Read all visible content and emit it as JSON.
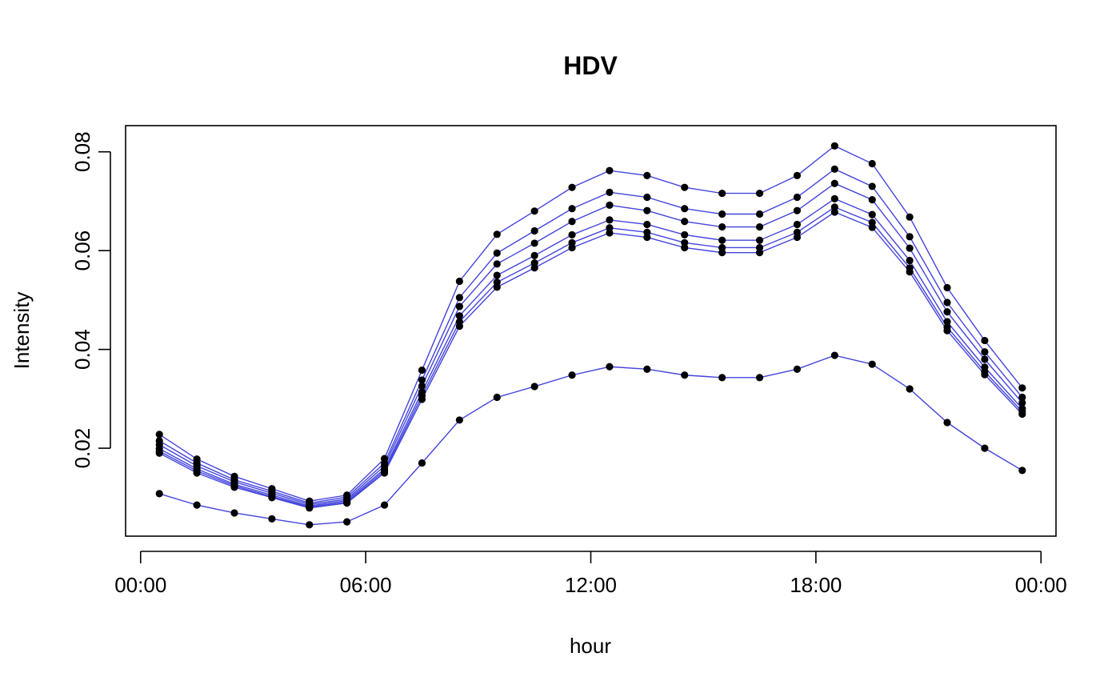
{
  "chart_data": {
    "type": "line",
    "title": "HDV",
    "xlabel": "hour",
    "ylabel": "Intensity",
    "x_tick_labels": [
      "00:00",
      "06:00",
      "12:00",
      "18:00",
      "00:00"
    ],
    "x_tick_hours": [
      0,
      6,
      12,
      18,
      24
    ],
    "y_tick_labels": [
      "0.02",
      "0.04",
      "0.06",
      "0.08"
    ],
    "y_ticks": [
      0.02,
      0.04,
      0.06,
      0.08
    ],
    "xlim": [
      -0.4,
      24.4
    ],
    "ylim": [
      0.0022,
      0.0853
    ],
    "grid": false,
    "legend": "none",
    "line_color": "#4444dd",
    "point_color": "#000000",
    "x": [
      0.5,
      1.5,
      2.5,
      3.5,
      4.5,
      5.5,
      6.5,
      7.5,
      8.5,
      9.5,
      10.5,
      11.5,
      12.5,
      13.5,
      14.5,
      15.5,
      16.5,
      17.5,
      18.5,
      19.5,
      20.5,
      21.5,
      22.5,
      23.5
    ],
    "series": [
      {
        "values": [
          0.0228,
          0.0178,
          0.0143,
          0.0118,
          0.0093,
          0.0105,
          0.0179,
          0.0358,
          0.0538,
          0.0633,
          0.068,
          0.0728,
          0.0762,
          0.0752,
          0.0728,
          0.0716,
          0.0716,
          0.0752,
          0.0812,
          0.0776,
          0.0668,
          0.0525,
          0.0418,
          0.0322
        ]
      },
      {
        "values": [
          0.0215,
          0.017,
          0.0136,
          0.0113,
          0.0089,
          0.0101,
          0.017,
          0.0338,
          0.0505,
          0.0595,
          0.064,
          0.0685,
          0.0718,
          0.0708,
          0.0685,
          0.0674,
          0.0674,
          0.0708,
          0.0765,
          0.073,
          0.0628,
          0.0495,
          0.0395,
          0.0303
        ]
      },
      {
        "values": [
          0.0207,
          0.0164,
          0.0132,
          0.0109,
          0.0086,
          0.0097,
          0.0164,
          0.0326,
          0.0487,
          0.0573,
          0.0615,
          0.0659,
          0.0692,
          0.0681,
          0.0659,
          0.0648,
          0.0648,
          0.0681,
          0.0736,
          0.0703,
          0.0605,
          0.0476,
          0.038,
          0.0292
        ]
      },
      {
        "values": [
          0.0199,
          0.0158,
          0.0127,
          0.0105,
          0.0083,
          0.0094,
          0.0158,
          0.0314,
          0.0468,
          0.055,
          0.059,
          0.0632,
          0.0662,
          0.0653,
          0.0632,
          0.0621,
          0.0621,
          0.0653,
          0.0705,
          0.0673,
          0.058,
          0.0456,
          0.0364,
          0.028
        ]
      },
      {
        "values": [
          0.0194,
          0.0154,
          0.0124,
          0.0102,
          0.0081,
          0.0091,
          0.0154,
          0.0306,
          0.0456,
          0.0536,
          0.0575,
          0.0616,
          0.0646,
          0.0637,
          0.0616,
          0.0606,
          0.0606,
          0.0637,
          0.0688,
          0.0657,
          0.0565,
          0.0445,
          0.0355,
          0.0274
        ]
      },
      {
        "values": [
          0.019,
          0.015,
          0.0121,
          0.01,
          0.0079,
          0.0089,
          0.015,
          0.0299,
          0.0447,
          0.0526,
          0.0565,
          0.0606,
          0.0636,
          0.0627,
          0.0606,
          0.0596,
          0.0596,
          0.0627,
          0.0678,
          0.0647,
          0.0557,
          0.0438,
          0.0349,
          0.0269
        ]
      },
      {
        "values": [
          0.0108,
          0.0085,
          0.0069,
          0.0057,
          0.0045,
          0.0051,
          0.0085,
          0.017,
          0.0257,
          0.0303,
          0.0325,
          0.0348,
          0.0365,
          0.036,
          0.0348,
          0.0343,
          0.0343,
          0.036,
          0.0388,
          0.037,
          0.032,
          0.0252,
          0.02,
          0.0155
        ]
      }
    ]
  }
}
